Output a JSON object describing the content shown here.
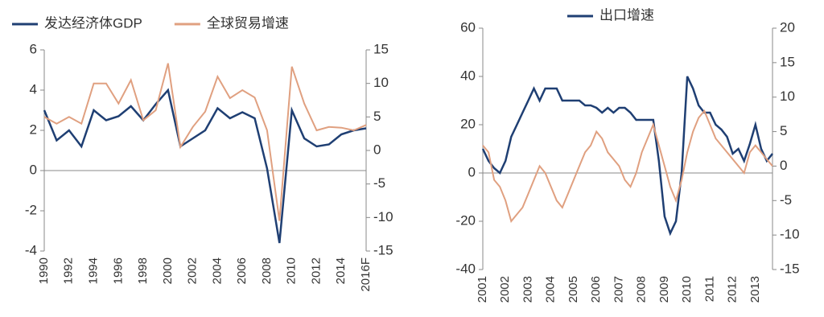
{
  "chart_data": [
    {
      "type": "line",
      "categories": [
        "1990",
        null,
        "1992",
        null,
        "1994",
        null,
        "1996",
        null,
        "1998",
        null,
        "2000",
        null,
        "2002",
        null,
        "2004",
        null,
        "2006",
        null,
        "2008",
        null,
        "2010",
        null,
        "2012",
        null,
        "2014",
        null,
        "2016F"
      ],
      "series": [
        {
          "name": "发达经济体GDP",
          "color": "#1f3f73",
          "axis": "y",
          "values": [
            3,
            1.5,
            2,
            1.2,
            3,
            2.5,
            2.7,
            3.2,
            2.5,
            3.3,
            4,
            1.2,
            1.6,
            2,
            3.1,
            2.6,
            2.9,
            2.6,
            0.1,
            -3.6,
            3,
            1.6,
            1.2,
            1.3,
            1.8,
            2,
            2.1
          ]
        },
        {
          "name": "全球贸易增速",
          "color": "#e0a080",
          "axis": "y2",
          "values": [
            5,
            4,
            5,
            4,
            10,
            10,
            7,
            10.5,
            4.5,
            6,
            13,
            0.5,
            3.5,
            5.8,
            11,
            7.8,
            9,
            7.9,
            3,
            -10.5,
            12.5,
            7,
            3,
            3.5,
            3.4,
            3,
            3.8
          ]
        }
      ],
      "ylim": [
        -4,
        6
      ],
      "yticks": [
        -4,
        -2,
        0,
        2,
        4,
        6
      ],
      "y2lim": [
        -15,
        15
      ],
      "y2ticks": [
        -15,
        -10,
        -5,
        0,
        5,
        10,
        15
      ]
    },
    {
      "type": "line",
      "categories": [
        "2001",
        null,
        null,
        null,
        "2002",
        null,
        null,
        null,
        "2003",
        null,
        null,
        null,
        "2004",
        null,
        null,
        null,
        "2005",
        null,
        null,
        null,
        "2006",
        null,
        null,
        null,
        "2007",
        null,
        null,
        null,
        "2008",
        null,
        null,
        null,
        "2009",
        null,
        null,
        null,
        "2010",
        null,
        null,
        null,
        "2011",
        null,
        null,
        null,
        "2012",
        null,
        null,
        null,
        "2013",
        null,
        null,
        null
      ],
      "series": [
        {
          "name": "出口增速",
          "color": "#1f3f73",
          "axis": "y",
          "values": [
            10,
            5,
            2,
            0,
            5,
            15,
            20,
            25,
            30,
            35,
            30,
            35,
            35,
            35,
            30,
            30,
            30,
            30,
            28,
            28,
            27,
            25,
            27,
            25,
            27,
            27,
            25,
            22,
            22,
            22,
            22,
            5,
            -18,
            -25,
            -20,
            0,
            40,
            35,
            28,
            25,
            25,
            20,
            18,
            15,
            8,
            10,
            5,
            12,
            20,
            10,
            5,
            8
          ]
        },
        {
          "color": "#e0a080",
          "axis": "y2",
          "values": [
            3,
            2,
            -2,
            -3,
            -5,
            -8,
            -7,
            -6,
            -4,
            -2,
            0,
            -1,
            -3,
            -5,
            -6,
            -4,
            -2,
            0,
            2,
            3,
            5,
            4,
            2,
            1,
            0,
            -2,
            -3,
            -1,
            2,
            4,
            6,
            3,
            0,
            -3,
            -5,
            -2,
            2,
            5,
            7,
            8,
            6,
            4,
            3,
            2,
            1,
            0,
            -1,
            2,
            3,
            2,
            1,
            0
          ]
        }
      ],
      "ylim": [
        -40,
        60
      ],
      "yticks": [
        -40,
        -20,
        0,
        20,
        40,
        60
      ],
      "y2lim": [
        -15,
        20
      ],
      "y2ticks": [
        -15,
        -10,
        -5,
        0,
        5,
        10,
        15,
        20
      ]
    }
  ]
}
